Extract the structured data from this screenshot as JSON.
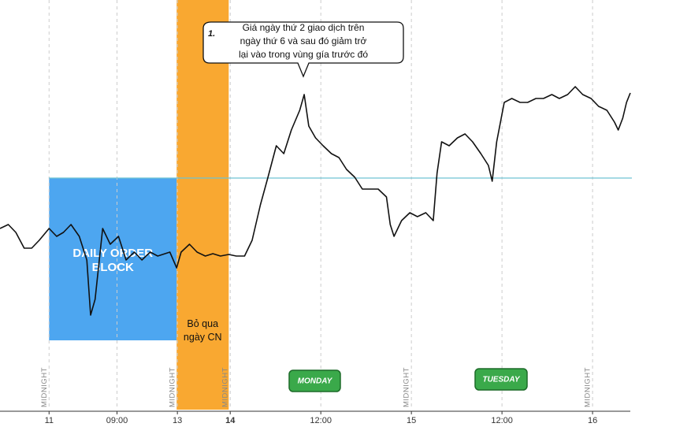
{
  "chart_data": {
    "type": "line",
    "xlim": [
      -6.5,
      77
    ],
    "ylim": [
      0,
      520
    ],
    "xticks": [
      {
        "value": 0,
        "label": "11"
      },
      {
        "value": 9,
        "label": "09:00"
      },
      {
        "value": 17,
        "label": "13"
      },
      {
        "value": 24,
        "label": "14"
      },
      {
        "value": 36,
        "label": "12:00"
      },
      {
        "value": 48,
        "label": "15"
      },
      {
        "value": 60,
        "label": "12:00"
      },
      {
        "value": 72,
        "label": "16"
      }
    ],
    "x": [
      -6.5,
      -5.4,
      -4.4,
      -3.3,
      -2.3,
      -1.3,
      0,
      1,
      1.9,
      2.9,
      4,
      5,
      5.5,
      6.1,
      7.1,
      8.1,
      9.2,
      10.2,
      11.3,
      12.3,
      13.4,
      14.4,
      16,
      16.9,
      17.5,
      18.6,
      19.6,
      20.7,
      21.7,
      22.7,
      23.8,
      24.8,
      25.9,
      26.9,
      28,
      29,
      30.1,
      31.1,
      32.1,
      33.2,
      33.8,
      34.4,
      35.3,
      36.3,
      37.4,
      38.4,
      39.4,
      40.5,
      41.5,
      43.6,
      44.7,
      45.2,
      45.7,
      46.2,
      46.7,
      47.8,
      48.8,
      49.9,
      50.9,
      51.4,
      52,
      53,
      54.1,
      55.1,
      56.1,
      57.2,
      58.2,
      58.7,
      59.3,
      60.3,
      61.3,
      62.4,
      63.4,
      64.5,
      65.5,
      66.6,
      67.6,
      68.7,
      69.7,
      70.7,
      71.8,
      72.8,
      73.9,
      74.9,
      75.4,
      76,
      76.5,
      77
    ],
    "series": [
      {
        "color": "#111111",
        "values": [
          230,
          235,
          225,
          205,
          205,
          215,
          230,
          220,
          225,
          235,
          220,
          190,
          120,
          140,
          230,
          210,
          220,
          190,
          200,
          190,
          200,
          195,
          200,
          180,
          200,
          210,
          200,
          195,
          198,
          195,
          197,
          195,
          195,
          215,
          260,
          295,
          335,
          325,
          355,
          380,
          400,
          360,
          345,
          335,
          325,
          320,
          305,
          295,
          280,
          280,
          270,
          235,
          220,
          230,
          240,
          250,
          245,
          250,
          240,
          300,
          340,
          335,
          345,
          350,
          340,
          325,
          310,
          290,
          340,
          390,
          395,
          390,
          390,
          395,
          395,
          400,
          395,
          400,
          410,
          400,
          395,
          385,
          380,
          365,
          355,
          370,
          390,
          402
        ]
      }
    ],
    "level": {
      "value": 294,
      "color": "#6fc3d4"
    },
    "zones": [
      {
        "x": [
          0,
          16.9
        ],
        "y": [
          88,
          294
        ],
        "color": "#4da6f0",
        "label": "DAILY ORDER BLOCK"
      },
      {
        "x": [
          16.9,
          23.8
        ],
        "color": "#f9a831",
        "label": "Bỏ qua ngày CN"
      }
    ],
    "midnight_labels": [
      "MIDNIGHT",
      "MIDNIGHT",
      "MIDNIGHT",
      "MIDNIGHT",
      "MIDNIGHT"
    ],
    "day_badges": [
      "MONDAY",
      "TUESDAY"
    ],
    "callout": {
      "number": "1.",
      "lines": [
        "Giá ngày thứ 2 giao dịch trên",
        "ngày thứ 6 và sau đó giảm trở",
        "lại vào trong vùng gía trước đó"
      ]
    }
  }
}
